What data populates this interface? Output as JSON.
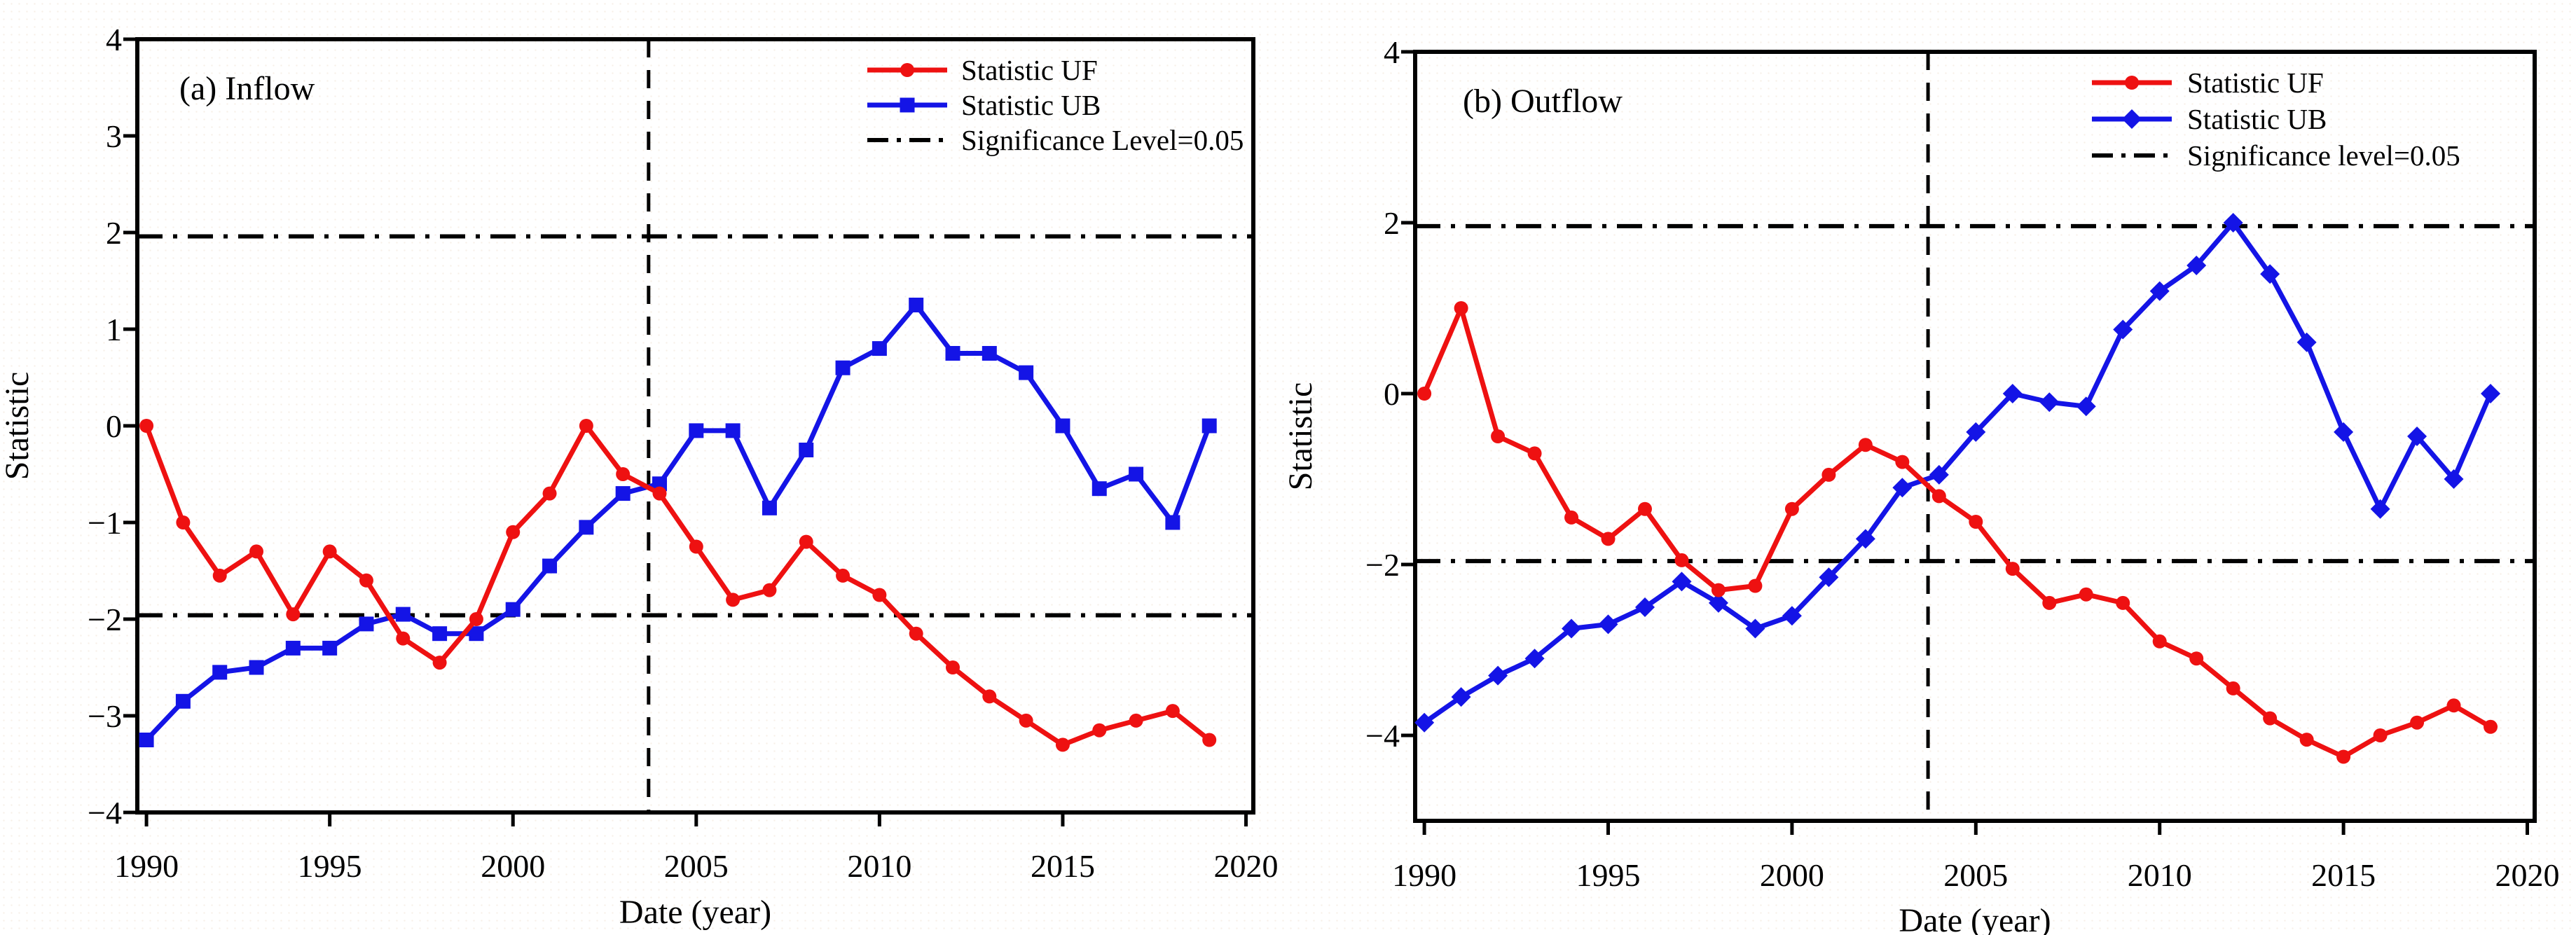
{
  "figure": {
    "background": "#ffffff",
    "axis_color": "#000000"
  },
  "chart_data": [
    {
      "id": "inflow",
      "type": "line",
      "title": "(a) Inflow",
      "xlabel": "Date (year)",
      "ylabel": "Statistic",
      "xlim": [
        1989.75,
        2020.2
      ],
      "ylim": [
        -4,
        4
      ],
      "grid": false,
      "legend_position": "top-right",
      "x_ticks": [
        1990,
        1995,
        2000,
        2005,
        2010,
        2015,
        2020
      ],
      "x_tick_labels": [
        "1990",
        "1995",
        "2000",
        "2005",
        "2010",
        "2015",
        "2020"
      ],
      "y_ticks": [
        4,
        3,
        2,
        1,
        0,
        -1,
        -2,
        -3,
        -4
      ],
      "y_tick_labels": [
        "4",
        "3",
        "2",
        "1",
        "0",
        "−1",
        "−2",
        "−3",
        "−4"
      ],
      "x": [
        1990,
        1991,
        1992,
        1993,
        1994,
        1995,
        1996,
        1997,
        1998,
        1999,
        2000,
        2001,
        2002,
        2003,
        2004,
        2005,
        2006,
        2007,
        2008,
        2009,
        2010,
        2011,
        2012,
        2013,
        2014,
        2015,
        2016,
        2017,
        2018,
        2019
      ],
      "series": [
        {
          "name": "Statistic UF",
          "color": "#ee1111",
          "marker": "circle",
          "values": [
            0.0,
            -1.0,
            -1.55,
            -1.3,
            -1.95,
            -1.3,
            -1.6,
            -2.2,
            -2.45,
            -2.0,
            -1.1,
            -0.7,
            0.0,
            -0.5,
            -0.7,
            -1.25,
            -1.8,
            -1.7,
            -1.2,
            -1.55,
            -1.75,
            -2.15,
            -2.5,
            -2.8,
            -3.05,
            -3.3,
            -3.15,
            -3.05,
            -2.95,
            -3.25
          ]
        },
        {
          "name": "Statistic UB",
          "color": "#1414e6",
          "marker": "square",
          "values": [
            -3.25,
            -2.85,
            -2.55,
            -2.5,
            -2.3,
            -2.3,
            -2.05,
            -1.95,
            -2.15,
            -2.15,
            -1.9,
            -1.45,
            -1.05,
            -0.7,
            -0.6,
            -0.05,
            -0.05,
            -0.85,
            -0.25,
            0.6,
            0.8,
            1.25,
            0.75,
            0.75,
            0.55,
            0.0,
            -0.65,
            -0.5,
            -1.0,
            0.0
          ]
        }
      ],
      "significance": {
        "label": "Significance Level=0.05",
        "level": 1.96,
        "color": "#000000"
      },
      "change_point_year": 2003.7
    },
    {
      "id": "outflow",
      "type": "line",
      "title": "(b) Outflow",
      "xlabel": "Date (year)",
      "ylabel": "Statistic",
      "xlim": [
        1989.75,
        2020.2
      ],
      "ylim": [
        -5,
        4
      ],
      "grid": false,
      "legend_position": "top-right",
      "x_ticks": [
        1990,
        1995,
        2000,
        2005,
        2010,
        2015,
        2020
      ],
      "x_tick_labels": [
        "1990",
        "1995",
        "2000",
        "2005",
        "2010",
        "2015",
        "2020"
      ],
      "y_ticks": [
        4,
        2,
        0,
        -2,
        -4
      ],
      "y_tick_labels": [
        "4",
        "2",
        "0",
        "−2",
        "−4"
      ],
      "x": [
        1990,
        1991,
        1992,
        1993,
        1994,
        1995,
        1996,
        1997,
        1998,
        1999,
        2000,
        2001,
        2002,
        2003,
        2004,
        2005,
        2006,
        2007,
        2008,
        2009,
        2010,
        2011,
        2012,
        2013,
        2014,
        2015,
        2016,
        2017,
        2018,
        2019
      ],
      "series": [
        {
          "name": "Statistic UF",
          "color": "#ee1111",
          "marker": "circle",
          "values": [
            0.0,
            1.0,
            -0.5,
            -0.7,
            -1.45,
            -1.7,
            -1.35,
            -1.95,
            -2.3,
            -2.25,
            -1.35,
            -0.95,
            -0.6,
            -0.8,
            -1.2,
            -1.5,
            -2.05,
            -2.45,
            -2.35,
            -2.45,
            -2.9,
            -3.1,
            -3.45,
            -3.8,
            -4.05,
            -4.25,
            -4.0,
            -3.85,
            -3.65,
            -3.9
          ]
        },
        {
          "name": "Statistic UB",
          "color": "#1414e6",
          "marker": "diamond",
          "values": [
            -3.85,
            -3.55,
            -3.3,
            -3.1,
            -2.75,
            -2.7,
            -2.5,
            -2.2,
            -2.45,
            -2.75,
            -2.6,
            -2.15,
            -1.7,
            -1.1,
            -0.95,
            -0.45,
            0.0,
            -0.1,
            -0.15,
            0.75,
            1.2,
            1.5,
            2.0,
            1.4,
            0.6,
            -0.45,
            -1.35,
            -0.5,
            -1.0,
            0.0
          ]
        }
      ],
      "significance": {
        "label": "Significance level=0.05",
        "level": 1.96,
        "color": "#000000"
      },
      "change_point_year": 2003.7
    }
  ]
}
